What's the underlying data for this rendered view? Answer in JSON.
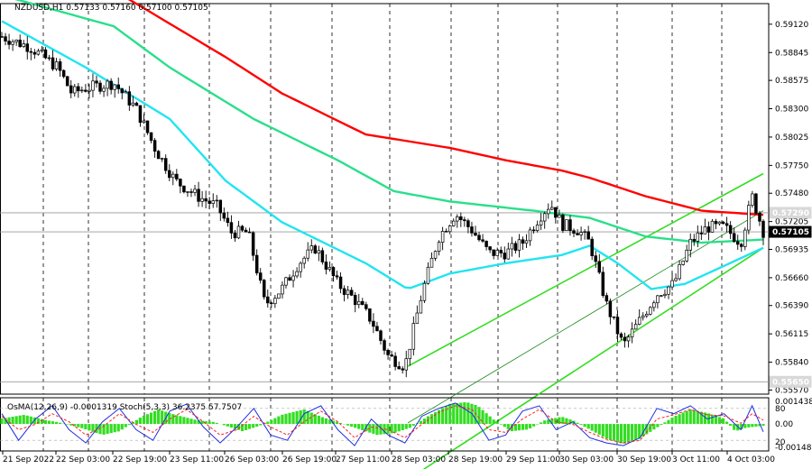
{
  "chart_data": [
    {
      "type": "candlestick",
      "header": "NZDUSD,H1  0.57133 0.57160 0.57100 0.57105",
      "symbol": "NZDUSD",
      "timeframe": "H1",
      "ohlc_last": {
        "open": 0.57133,
        "high": 0.5716,
        "low": 0.571,
        "close": 0.57105
      },
      "ylim": [
        0.5553,
        0.5932
      ],
      "y_ticks": [
        "0.59120",
        "0.58845",
        "0.58575",
        "0.58300",
        "0.58025",
        "0.57750",
        "0.57480",
        "0.57205",
        "0.56935",
        "0.56660",
        "0.56390",
        "0.56115",
        "0.55840",
        "0.55570"
      ],
      "price_labels": {
        "current": "0.57105",
        "current_value": 0.57105,
        "level": "0.57290",
        "level_value": 0.5729,
        "bottom": "0.55650",
        "bottom_value": 0.5565
      },
      "x_ticks": [
        "21 Sep 2022",
        "22 Sep 03:00",
        "22 Sep 19:00",
        "23 Sep 11:00",
        "26 Sep 03:00",
        "26 Sep 19:00",
        "27 Sep 11:00",
        "28 Sep 03:00",
        "28 Sep 19:00",
        "29 Sep 11:00",
        "30 Sep 03:00",
        "30 Sep 19:00",
        "3 Oct 11:00",
        "4 Oct 03:00"
      ],
      "grid": false,
      "bar_count": 210,
      "path": [
        [
          0,
          0.59
        ],
        [
          10,
          0.589
        ],
        [
          20,
          0.587
        ],
        [
          25,
          0.5845
        ],
        [
          30,
          0.585
        ],
        [
          40,
          0.5855
        ],
        [
          48,
          0.583
        ],
        [
          55,
          0.579
        ],
        [
          62,
          0.576
        ],
        [
          70,
          0.5745
        ],
        [
          77,
          0.5735
        ],
        [
          82,
          0.571
        ],
        [
          88,
          0.571
        ],
        [
          94,
          0.564
        ],
        [
          100,
          0.5655
        ],
        [
          106,
          0.568
        ],
        [
          112,
          0.5695
        ],
        [
          120,
          0.566
        ],
        [
          126,
          0.5645
        ],
        [
          132,
          0.5625
        ],
        [
          138,
          0.559
        ],
        [
          144,
          0.558
        ],
        [
          150,
          0.565
        ],
        [
          156,
          0.5705
        ],
        [
          162,
          0.5728
        ],
        [
          168,
          0.5712
        ],
        [
          174,
          0.569
        ],
        [
          180,
          0.569
        ],
        [
          186,
          0.57
        ],
        [
          192,
          0.5725
        ],
        [
          196,
          0.5738
        ],
        [
          200,
          0.5718
        ],
        [
          206,
          0.5712
        ],
        [
          210,
          0.57
        ],
        [
          216,
          0.564
        ],
        [
          222,
          0.56
        ],
        [
          228,
          0.5625
        ],
        [
          234,
          0.565
        ],
        [
          240,
          0.566
        ],
        [
          246,
          0.57
        ],
        [
          252,
          0.5715
        ],
        [
          258,
          0.5715
        ],
        [
          264,
          0.57
        ],
        [
          268,
          0.5745
        ],
        [
          272,
          0.5711
        ]
      ],
      "moving_averages": [
        {
          "color": "#ff0000",
          "values": [
            [
              0,
              0.5952
            ],
            [
              40,
              0.5945
            ],
            [
              80,
              0.588
            ],
            [
              100,
              0.5845
            ],
            [
              130,
              0.5805
            ],
            [
              160,
              0.5792
            ],
            [
              180,
              0.578
            ],
            [
              200,
              0.577
            ],
            [
              210,
              0.5763
            ],
            [
              230,
              0.5745
            ],
            [
              250,
              0.5731
            ],
            [
              272,
              0.5727
            ]
          ]
        },
        {
          "color": "#2adf8a",
          "values": [
            [
              0,
              0.594
            ],
            [
              40,
              0.591
            ],
            [
              60,
              0.587
            ],
            [
              90,
              0.582
            ],
            [
              120,
              0.578
            ],
            [
              140,
              0.575
            ],
            [
              160,
              0.574
            ],
            [
              190,
              0.5731
            ],
            [
              210,
              0.5724
            ],
            [
              230,
              0.5706
            ],
            [
              250,
              0.57
            ],
            [
              272,
              0.5703
            ]
          ]
        },
        {
          "color": "#22e4f0",
          "values": [
            [
              0,
              0.5915
            ],
            [
              30,
              0.587
            ],
            [
              60,
              0.582
            ],
            [
              80,
              0.576
            ],
            [
              100,
              0.572
            ],
            [
              130,
              0.568
            ],
            [
              145,
              0.5655
            ],
            [
              160,
              0.567
            ],
            [
              180,
              0.568
            ],
            [
              200,
              0.5688
            ],
            [
              210,
              0.5697
            ],
            [
              220,
              0.568
            ],
            [
              232,
              0.5655
            ],
            [
              244,
              0.566
            ],
            [
              256,
              0.5675
            ],
            [
              272,
              0.5695
            ]
          ]
        }
      ],
      "channel": {
        "color": "#33dd22",
        "upper": [
          [
            145,
            0.558
          ],
          [
            272,
            0.5767
          ]
        ],
        "lower": [
          [
            145,
            0.547
          ],
          [
            272,
            0.5695
          ]
        ],
        "middle": [
          [
            145,
            0.5525
          ],
          [
            272,
            0.5731
          ]
        ]
      },
      "indicator": {
        "label": "OsMA(12,26,9) -0.0001319  Stoch(5,3,3) 36.2375 57.7507",
        "osma_label": "OsMA(12,26,9)",
        "osma_value": -0.0001319,
        "stoch_label": "Stoch(5,3,3)",
        "stoch_k": 36.2375,
        "stoch_d": 57.7507,
        "y_labels": [
          "0.001438",
          "80",
          "0.00",
          "20",
          "-0.001481"
        ],
        "histogram_color": "#33dd22",
        "k_color": "#1e2de0",
        "d_color": "#ff2222",
        "levels": {
          "stoch_upper": 80,
          "stoch_lower": 20,
          "zero": 0
        },
        "ylim": [
          -0.001481,
          0.001438
        ],
        "histogram": [
          [
            0,
            0.0003
          ],
          [
            8,
            0.0005
          ],
          [
            16,
            0.0002
          ],
          [
            20,
            0.0001
          ],
          [
            28,
            -0.0002
          ],
          [
            36,
            -0.0006
          ],
          [
            42,
            -0.0004
          ],
          [
            50,
            0.0004
          ],
          [
            56,
            0.0008
          ],
          [
            62,
            0.0005
          ],
          [
            70,
            0.0002
          ],
          [
            76,
            0.0001
          ],
          [
            80,
            -0.0001
          ],
          [
            86,
            -0.0004
          ],
          [
            92,
            -0.0001
          ],
          [
            100,
            0.0005
          ],
          [
            108,
            0.0008
          ],
          [
            114,
            0.0004
          ],
          [
            120,
            0.0001
          ],
          [
            128,
            -0.0003
          ],
          [
            134,
            -0.0006
          ],
          [
            140,
            -0.0005
          ],
          [
            146,
            -0.0002
          ],
          [
            152,
            0.0004
          ],
          [
            160,
            0.0011
          ],
          [
            166,
            0.0012
          ],
          [
            170,
            0.001
          ],
          [
            176,
            0.0002
          ],
          [
            182,
            -0.0004
          ],
          [
            188,
            -0.0003
          ],
          [
            194,
            0.0002
          ],
          [
            200,
            0.0004
          ],
          [
            204,
            0.0002
          ],
          [
            210,
            -0.0003
          ],
          [
            216,
            -0.0008
          ],
          [
            222,
            -0.0011
          ],
          [
            228,
            -0.0008
          ],
          [
            234,
            -0.0002
          ],
          [
            240,
            0.0004
          ],
          [
            246,
            0.0008
          ],
          [
            252,
            0.0006
          ],
          [
            258,
            0.0003
          ],
          [
            262,
            -0.0004
          ],
          [
            266,
            -0.0002
          ],
          [
            272,
            -0.0001
          ]
        ],
        "stoch_k_path": [
          [
            0,
            70
          ],
          [
            6,
            20
          ],
          [
            12,
            60
          ],
          [
            18,
            85
          ],
          [
            24,
            40
          ],
          [
            30,
            15
          ],
          [
            36,
            55
          ],
          [
            42,
            80
          ],
          [
            48,
            40
          ],
          [
            54,
            20
          ],
          [
            60,
            75
          ],
          [
            66,
            88
          ],
          [
            72,
            45
          ],
          [
            78,
            15
          ],
          [
            84,
            45
          ],
          [
            90,
            80
          ],
          [
            96,
            30
          ],
          [
            102,
            20
          ],
          [
            108,
            70
          ],
          [
            114,
            85
          ],
          [
            120,
            40
          ],
          [
            126,
            10
          ],
          [
            132,
            60
          ],
          [
            138,
            30
          ],
          [
            144,
            15
          ],
          [
            150,
            65
          ],
          [
            156,
            80
          ],
          [
            162,
            90
          ],
          [
            168,
            70
          ],
          [
            174,
            20
          ],
          [
            180,
            30
          ],
          [
            186,
            75
          ],
          [
            192,
            85
          ],
          [
            198,
            40
          ],
          [
            204,
            55
          ],
          [
            210,
            25
          ],
          [
            216,
            15
          ],
          [
            222,
            10
          ],
          [
            228,
            25
          ],
          [
            234,
            80
          ],
          [
            240,
            70
          ],
          [
            246,
            85
          ],
          [
            252,
            60
          ],
          [
            258,
            70
          ],
          [
            264,
            40
          ],
          [
            268,
            85
          ],
          [
            272,
            36
          ]
        ],
        "stoch_d_path": [
          [
            0,
            65
          ],
          [
            6,
            40
          ],
          [
            12,
            50
          ],
          [
            18,
            70
          ],
          [
            24,
            55
          ],
          [
            30,
            30
          ],
          [
            36,
            45
          ],
          [
            42,
            70
          ],
          [
            48,
            50
          ],
          [
            54,
            35
          ],
          [
            60,
            60
          ],
          [
            66,
            78
          ],
          [
            72,
            55
          ],
          [
            78,
            30
          ],
          [
            84,
            40
          ],
          [
            90,
            65
          ],
          [
            96,
            45
          ],
          [
            102,
            30
          ],
          [
            108,
            55
          ],
          [
            114,
            75
          ],
          [
            120,
            55
          ],
          [
            126,
            25
          ],
          [
            132,
            45
          ],
          [
            138,
            40
          ],
          [
            144,
            25
          ],
          [
            150,
            50
          ],
          [
            156,
            72
          ],
          [
            162,
            85
          ],
          [
            168,
            78
          ],
          [
            174,
            40
          ],
          [
            180,
            35
          ],
          [
            186,
            60
          ],
          [
            192,
            78
          ],
          [
            198,
            55
          ],
          [
            204,
            50
          ],
          [
            210,
            35
          ],
          [
            216,
            22
          ],
          [
            222,
            15
          ],
          [
            228,
            20
          ],
          [
            234,
            60
          ],
          [
            240,
            68
          ],
          [
            246,
            78
          ],
          [
            252,
            68
          ],
          [
            258,
            66
          ],
          [
            264,
            52
          ],
          [
            268,
            70
          ],
          [
            272,
            58
          ]
        ]
      }
    }
  ]
}
